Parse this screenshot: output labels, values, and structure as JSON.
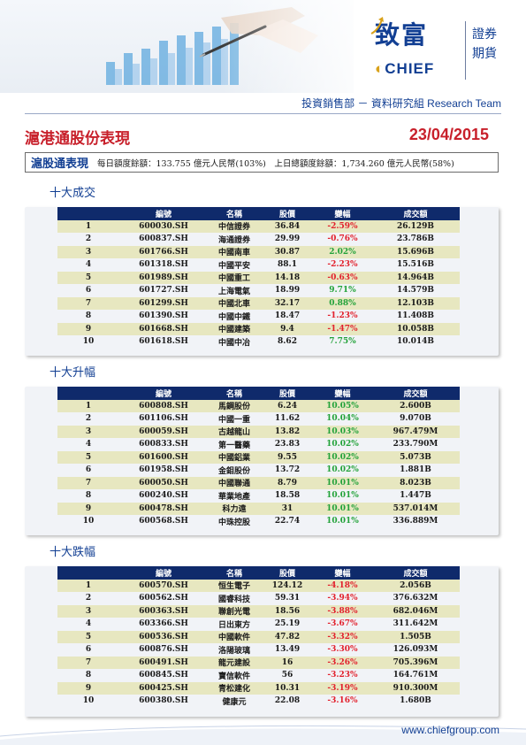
{
  "brand": {
    "name_cn": "致富",
    "name_en": "CHIEF",
    "side_line1": "證券",
    "side_line2": "期貨"
  },
  "header": {
    "department": "投資銷售部 － 資料研究組 Research Team"
  },
  "title": "滬港通股份表現",
  "date": "23/04/2015",
  "summary": {
    "label": "滬股通表現",
    "text": "每日額度餘額：133.755 億元人民幣(103%)　上日總額度餘額：1,734.260 億元人民幣(58%)"
  },
  "columns": [
    "編號",
    "名稱",
    "股價",
    "變幅",
    "成交額"
  ],
  "sections": [
    {
      "title": "十大成交",
      "rows": [
        {
          "rank": "1",
          "code": "600030.SH",
          "name": "中信證券",
          "price": "36.84",
          "change": "-2.59%",
          "dir": "neg",
          "turnover": "26.129B"
        },
        {
          "rank": "2",
          "code": "600837.SH",
          "name": "海通證券",
          "price": "29.99",
          "change": "-0.76%",
          "dir": "neg",
          "turnover": "23.786B"
        },
        {
          "rank": "3",
          "code": "601766.SH",
          "name": "中國南車",
          "price": "30.87",
          "change": "2.02%",
          "dir": "pos",
          "turnover": "15.696B"
        },
        {
          "rank": "4",
          "code": "601318.SH",
          "name": "中國平安",
          "price": "88.1",
          "change": "-2.23%",
          "dir": "neg",
          "turnover": "15.516B"
        },
        {
          "rank": "5",
          "code": "601989.SH",
          "name": "中國重工",
          "price": "14.18",
          "change": "-0.63%",
          "dir": "neg",
          "turnover": "14.964B"
        },
        {
          "rank": "6",
          "code": "601727.SH",
          "name": "上海電氣",
          "price": "18.99",
          "change": "9.71%",
          "dir": "pos",
          "turnover": "14.579B"
        },
        {
          "rank": "7",
          "code": "601299.SH",
          "name": "中國北車",
          "price": "32.17",
          "change": "0.88%",
          "dir": "pos",
          "turnover": "12.103B"
        },
        {
          "rank": "8",
          "code": "601390.SH",
          "name": "中國中鐵",
          "price": "18.47",
          "change": "-1.23%",
          "dir": "neg",
          "turnover": "11.408B"
        },
        {
          "rank": "9",
          "code": "601668.SH",
          "name": "中國建築",
          "price": "9.4",
          "change": "-1.47%",
          "dir": "neg",
          "turnover": "10.058B"
        },
        {
          "rank": "10",
          "code": "601618.SH",
          "name": "中國中冶",
          "price": "8.62",
          "change": "7.75%",
          "dir": "pos",
          "turnover": "10.014B"
        }
      ]
    },
    {
      "title": "十大升幅",
      "rows": [
        {
          "rank": "1",
          "code": "600808.SH",
          "name": "馬鋼股份",
          "price": "6.24",
          "change": "10.05%",
          "dir": "pos",
          "turnover": "2.600B"
        },
        {
          "rank": "2",
          "code": "601106.SH",
          "name": "中國一重",
          "price": "11.62",
          "change": "10.04%",
          "dir": "pos",
          "turnover": "9.070B"
        },
        {
          "rank": "3",
          "code": "600059.SH",
          "name": "古越龍山",
          "price": "13.82",
          "change": "10.03%",
          "dir": "pos",
          "turnover": "967.479M"
        },
        {
          "rank": "4",
          "code": "600833.SH",
          "name": "第一醫藥",
          "price": "23.83",
          "change": "10.02%",
          "dir": "pos",
          "turnover": "233.790M"
        },
        {
          "rank": "5",
          "code": "601600.SH",
          "name": "中國鋁業",
          "price": "9.55",
          "change": "10.02%",
          "dir": "pos",
          "turnover": "5.073B"
        },
        {
          "rank": "6",
          "code": "601958.SH",
          "name": "金鉬股份",
          "price": "13.72",
          "change": "10.02%",
          "dir": "pos",
          "turnover": "1.881B"
        },
        {
          "rank": "7",
          "code": "600050.SH",
          "name": "中國聯通",
          "price": "8.79",
          "change": "10.01%",
          "dir": "pos",
          "turnover": "8.023B"
        },
        {
          "rank": "8",
          "code": "600240.SH",
          "name": "華業地產",
          "price": "18.58",
          "change": "10.01%",
          "dir": "pos",
          "turnover": "1.447B"
        },
        {
          "rank": "9",
          "code": "600478.SH",
          "name": "科力遠",
          "price": "31",
          "change": "10.01%",
          "dir": "pos",
          "turnover": "537.014M"
        },
        {
          "rank": "10",
          "code": "600568.SH",
          "name": "中珠控股",
          "price": "22.74",
          "change": "10.01%",
          "dir": "pos",
          "turnover": "336.889M"
        }
      ]
    },
    {
      "title": "十大跌幅",
      "rows": [
        {
          "rank": "1",
          "code": "600570.SH",
          "name": "恒生電子",
          "price": "124.12",
          "change": "-4.18%",
          "dir": "neg",
          "turnover": "2.056B"
        },
        {
          "rank": "2",
          "code": "600562.SH",
          "name": "國睿科技",
          "price": "59.31",
          "change": "-3.94%",
          "dir": "neg",
          "turnover": "376.632M"
        },
        {
          "rank": "3",
          "code": "600363.SH",
          "name": "聯創光電",
          "price": "18.56",
          "change": "-3.88%",
          "dir": "neg",
          "turnover": "682.046M"
        },
        {
          "rank": "4",
          "code": "603366.SH",
          "name": "日出東方",
          "price": "25.19",
          "change": "-3.67%",
          "dir": "neg",
          "turnover": "311.642M"
        },
        {
          "rank": "5",
          "code": "600536.SH",
          "name": "中國軟件",
          "price": "47.82",
          "change": "-3.32%",
          "dir": "neg",
          "turnover": "1.505B"
        },
        {
          "rank": "6",
          "code": "600876.SH",
          "name": "洛陽玻璃",
          "price": "13.49",
          "change": "-3.30%",
          "dir": "neg",
          "turnover": "126.093M"
        },
        {
          "rank": "7",
          "code": "600491.SH",
          "name": "龍元建設",
          "price": "16",
          "change": "-3.26%",
          "dir": "neg",
          "turnover": "705.396M"
        },
        {
          "rank": "8",
          "code": "600845.SH",
          "name": "寶信軟件",
          "price": "56",
          "change": "-3.23%",
          "dir": "neg",
          "turnover": "164.761M"
        },
        {
          "rank": "9",
          "code": "600425.SH",
          "name": "青松建化",
          "price": "10.31",
          "change": "-3.19%",
          "dir": "neg",
          "turnover": "910.300M"
        },
        {
          "rank": "10",
          "code": "600380.SH",
          "name": "健康元",
          "price": "22.08",
          "change": "-3.16%",
          "dir": "neg",
          "turnover": "1.680B"
        }
      ]
    }
  ],
  "footer": {
    "url": "www.chiefgroup.com"
  },
  "colors": {
    "brand_blue": "#123f93",
    "title_red": "#c8202b",
    "header_navy": "#0f2a6b",
    "row_highlight": "#e7e7c0",
    "negative": "#e2202c",
    "positive": "#22a239"
  }
}
